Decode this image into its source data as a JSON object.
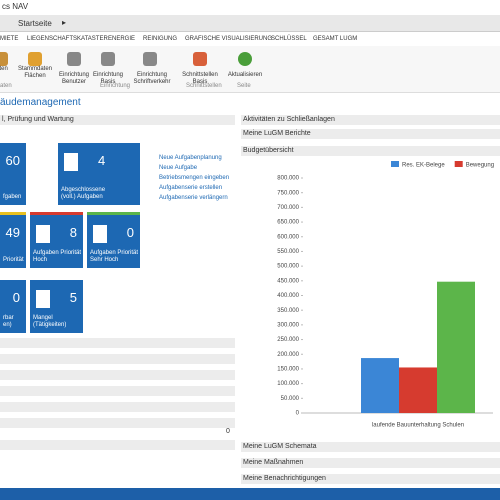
{
  "app": {
    "title": "cs NAV",
    "breadcrumb": "Startseite"
  },
  "tabs": [
    "MIETE",
    "LIEGENSCHAFTSKATASTER",
    "ENERGIE",
    "REINIGUNG",
    "GRAFISCHE VISUALISIERUNG",
    "SCHLÜSSEL",
    "GESAMT LUGM"
  ],
  "ribbon": {
    "buttons": [
      "aten",
      "Stammdaten Flächen",
      "Einrichtung Benutzer",
      "Einrichtung Basis",
      "Einrichtung Schriftverkehr",
      "Schnittstellen Basis",
      "Aktualisieren"
    ],
    "groups": [
      "aten",
      "Einrichtung",
      "Schnittstellen",
      "Seite"
    ]
  },
  "page_title": "äudemanagement",
  "left": {
    "header": "l, Prüfung und Wartung",
    "tiles": [
      {
        "value": "60",
        "label": "fgaben"
      },
      {
        "value": "4",
        "label": "Abgeschlossene (voll.) Aufgaben"
      },
      {
        "value": "49",
        "label": "Priorität"
      },
      {
        "value": "8",
        "label": "Aufgaben Priorität Hoch"
      },
      {
        "value": "0",
        "label": "Aufgaben Priorität Sehr Hoch"
      },
      {
        "value": "0",
        "label": "rbar en)"
      },
      {
        "value": "5",
        "label": "Mangel (Tätigkeiten)"
      }
    ],
    "links": [
      "Neue Aufgabenplanung",
      "Neue Aufgabe",
      "Betriebsmengen eingeben",
      "Aufgabenserie erstellen",
      "Aufgabenserie verlängern"
    ],
    "footer_value": "0"
  },
  "right": {
    "parts": [
      "Aktivitäten zu Schließanlagen",
      "Meine LuGM Berichte",
      "Budgetübersicht"
    ],
    "bottom_parts": [
      "Meine LuGM Schemata",
      "Meine Maßnahmen",
      "Meine Benachrichtigungen"
    ]
  },
  "chart_data": {
    "type": "bar",
    "categories": [
      "laufende Bauunterhaltung Schulen"
    ],
    "series": [
      {
        "name": "Res. EK-Belege",
        "color": "#3b86d6",
        "values": [
          187000
        ]
      },
      {
        "name": "Bewegung",
        "color": "#d63b2f",
        "values": [
          155000
        ]
      },
      {
        "color": "#5cb54a",
        "values": [
          447000
        ]
      }
    ],
    "ylim": [
      0,
      800000
    ],
    "yticks": [
      0,
      {
        "value": 50000,
        "label": "50.000"
      },
      {
        "value": 100000,
        "label": "100.000"
      },
      {
        "value": 150000,
        "label": "150.000"
      },
      {
        "value": 200000,
        "label": "200.000"
      },
      {
        "value": 250000,
        "label": "250.000"
      },
      {
        "value": 300000,
        "label": "300.000"
      },
      {
        "value": 350000,
        "label": "350.000"
      },
      {
        "value": 400000,
        "label": "400.000"
      },
      {
        "value": 450000,
        "label": "450.000"
      },
      {
        "value": 500000,
        "label": "500.000"
      },
      {
        "value": 550000,
        "label": "550.000"
      },
      {
        "value": 600000,
        "label": "600.000"
      },
      {
        "value": 650000,
        "label": "650.000"
      },
      {
        "value": 700000,
        "label": "700.000"
      },
      {
        "value": 750000,
        "label": "750.000"
      },
      {
        "value": 800000,
        "label": "800.000"
      }
    ],
    "legend": "top-right"
  }
}
